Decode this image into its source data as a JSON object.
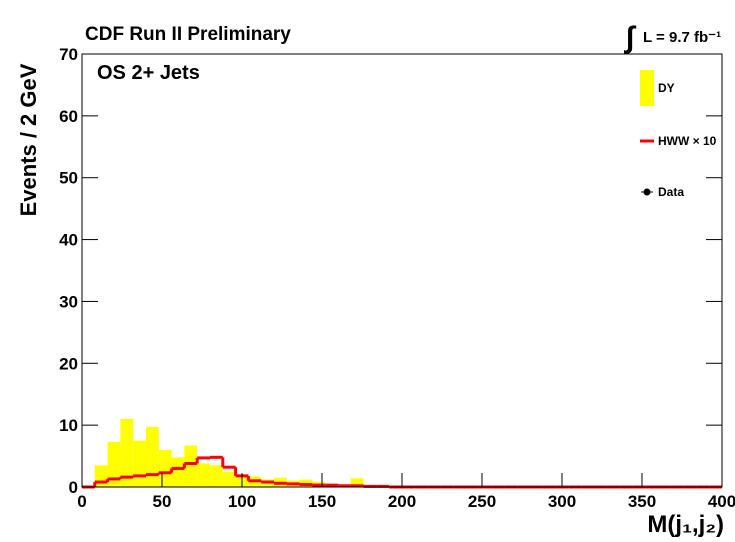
{
  "chart_data": {
    "type": "histogram",
    "title": "CDF Run II Preliminary",
    "lumi_symbol": "∫",
    "lumi": "L = 9.7 fb⁻¹",
    "annotation": "OS 2+ Jets",
    "x_label": "M(j₁,j₂)",
    "y_label": "Events / 2 GeV",
    "bins": [
      0,
      8,
      16,
      24,
      32,
      40,
      48,
      56,
      64,
      72,
      80,
      88,
      96,
      104,
      112,
      120,
      128,
      136,
      144,
      152,
      160,
      168,
      176,
      184,
      192,
      200,
      208,
      216,
      224,
      232,
      240,
      248,
      256,
      264,
      272,
      280,
      288,
      296,
      304,
      312,
      320,
      328,
      336,
      344,
      352,
      360,
      368,
      376,
      384,
      392,
      400
    ],
    "series": [
      {
        "name": "DY",
        "color": "#ffff00",
        "style": "fill",
        "values": [
          0,
          3.5,
          7.3,
          11,
          7.5,
          9.7,
          6,
          4.8,
          6.7,
          3.8,
          3.5,
          2.5,
          2,
          1.7,
          1.2,
          1.5,
          1,
          1.2,
          0.8,
          0.5,
          0.3,
          1.4,
          0.2,
          0,
          0,
          0,
          0,
          0,
          0,
          0,
          0,
          0,
          0,
          0,
          0,
          0,
          0,
          0,
          0,
          0,
          0,
          0,
          0,
          0,
          0,
          0,
          0,
          0,
          0,
          0
        ]
      },
      {
        "name": "HWW × 10",
        "color": "#ff0000",
        "style": "step",
        "values": [
          0,
          0.8,
          1.3,
          1.6,
          1.8,
          2,
          2.3,
          3,
          3.8,
          4.7,
          4.8,
          3.2,
          1.8,
          1,
          0.8,
          0.6,
          0.5,
          0.4,
          0.3,
          0.3,
          0.2,
          0.2,
          0.1,
          0.1,
          0,
          0,
          0,
          0,
          0,
          0,
          0,
          0,
          0,
          0,
          0,
          0,
          0,
          0,
          0,
          0,
          0,
          0,
          0,
          0,
          0,
          0,
          0,
          0,
          0,
          0
        ]
      },
      {
        "name": "Data",
        "color": "#000000",
        "style": "points",
        "values": [
          null,
          null,
          null,
          null,
          null,
          null,
          null,
          null,
          null,
          null,
          null,
          null,
          null,
          null,
          null,
          null,
          null,
          null,
          null,
          null,
          null,
          null,
          null,
          null,
          null,
          null,
          null,
          null,
          null,
          null,
          null,
          null,
          null,
          null,
          null,
          null,
          null,
          null,
          null,
          null,
          null,
          null,
          null,
          null,
          null,
          null,
          null,
          null,
          null,
          null
        ]
      }
    ],
    "xlim": [
      0,
      400
    ],
    "xticks": [
      0,
      50,
      100,
      150,
      200,
      250,
      300,
      350,
      400
    ],
    "ylim": [
      0,
      70
    ],
    "yticks": [
      0,
      10,
      20,
      30,
      40,
      50,
      60,
      70
    ]
  }
}
